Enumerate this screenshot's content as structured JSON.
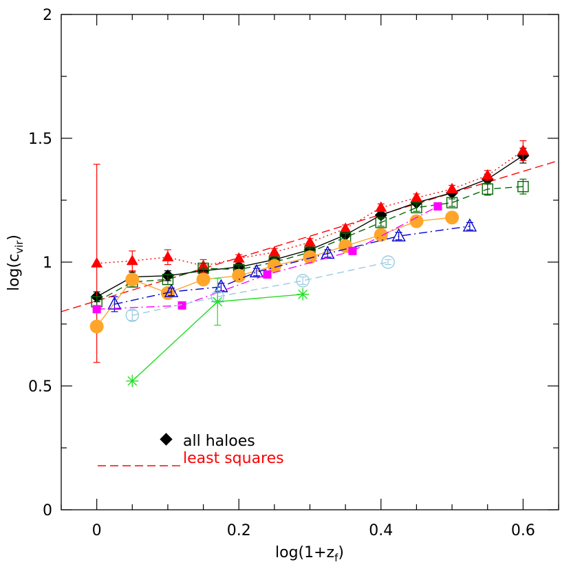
{
  "chart_data": {
    "type": "scatter",
    "xlabel": {
      "base": "log(1+z",
      "sub": "f",
      "close": ")"
    },
    "ylabel": {
      "base": "log(c",
      "sub": "vir",
      "close": ")"
    },
    "xlim": [
      -0.05,
      0.65
    ],
    "ylim": [
      0,
      2
    ],
    "xticks": [
      {
        "v": 0,
        "label": "0"
      },
      {
        "v": 0.2,
        "label": "0.2"
      },
      {
        "v": 0.4,
        "label": "0.4"
      },
      {
        "v": 0.6,
        "label": "0.6"
      }
    ],
    "yticks": [
      {
        "v": 0,
        "label": "0"
      },
      {
        "v": 0.5,
        "label": "0.5"
      },
      {
        "v": 1,
        "label": "1"
      },
      {
        "v": 1.5,
        "label": "1.5"
      },
      {
        "v": 2,
        "label": "2"
      }
    ],
    "x_minor_step": 0.05,
    "y_minor_step": 0.25,
    "series": [
      {
        "name": "all haloes",
        "marker": "diamond-filled",
        "color": "#000000",
        "line": "solid",
        "points": [
          [
            0,
            0.86,
            0.02
          ],
          [
            0.05,
            0.94,
            0.02
          ],
          [
            0.1,
            0.945,
            0.02
          ],
          [
            0.15,
            0.965,
            0.015
          ],
          [
            0.2,
            0.98,
            0.015
          ],
          [
            0.25,
            1.01,
            0.01
          ],
          [
            0.3,
            1.05,
            0.01
          ],
          [
            0.35,
            1.11,
            0.01
          ],
          [
            0.4,
            1.19,
            0.01
          ],
          [
            0.45,
            1.24,
            0.01
          ],
          [
            0.5,
            1.28,
            0.01
          ],
          [
            0.55,
            1.335,
            0.02
          ],
          [
            0.6,
            1.43,
            0.03
          ]
        ]
      },
      {
        "name": "",
        "marker": "triangle-filled",
        "color": "#ff0000",
        "line": "dotted",
        "points": [
          [
            0,
            0.995,
            0.4
          ],
          [
            0.05,
            1.005,
            0.04
          ],
          [
            0.1,
            1.02,
            0.03
          ],
          [
            0.15,
            0.985,
            0.025
          ],
          [
            0.2,
            1.015,
            0.015
          ],
          [
            0.25,
            1.04,
            0.015
          ],
          [
            0.3,
            1.08,
            0.015
          ],
          [
            0.35,
            1.135,
            0.015
          ],
          [
            0.4,
            1.22,
            0.015
          ],
          [
            0.45,
            1.26,
            0.015
          ],
          [
            0.5,
            1.295,
            0.015
          ],
          [
            0.55,
            1.35,
            0.02
          ],
          [
            0.6,
            1.45,
            0.04
          ]
        ]
      },
      {
        "name": "",
        "marker": "square-open",
        "color": "#006400",
        "line": "dashed",
        "points": [
          [
            0,
            0.84,
            0.02
          ],
          [
            0.05,
            0.92,
            0.02
          ],
          [
            0.1,
            0.93,
            0.02
          ],
          [
            0.15,
            0.975,
            0.02
          ],
          [
            0.2,
            0.97,
            0.015
          ],
          [
            0.25,
            1.0,
            0.015
          ],
          [
            0.3,
            1.04,
            0.015
          ],
          [
            0.35,
            1.1,
            0.015
          ],
          [
            0.4,
            1.16,
            0.015
          ],
          [
            0.45,
            1.22,
            0.015
          ],
          [
            0.5,
            1.24,
            0.015
          ],
          [
            0.55,
            1.295,
            0.025
          ],
          [
            0.6,
            1.305,
            0.03
          ]
        ]
      },
      {
        "name": "",
        "marker": "circle-filled",
        "color": "#ffa52a",
        "line": "solid",
        "points": [
          [
            0,
            0.74,
            0.0
          ],
          [
            0.05,
            0.93,
            0.0
          ],
          [
            0.1,
            0.875,
            0.0
          ],
          [
            0.15,
            0.93,
            0.0
          ],
          [
            0.2,
            0.945,
            0.0
          ],
          [
            0.25,
            0.985,
            0.0
          ],
          [
            0.3,
            1.02,
            0.0
          ],
          [
            0.35,
            1.065,
            0.0
          ],
          [
            0.4,
            1.11,
            0.0
          ],
          [
            0.45,
            1.165,
            0.0
          ],
          [
            0.5,
            1.18,
            0.0
          ]
        ]
      },
      {
        "name": "",
        "marker": "triangle-open",
        "color": "#0000cd",
        "line": "dashdot",
        "points": [
          [
            0.025,
            0.83,
            0.03
          ],
          [
            0.105,
            0.88,
            0.015
          ],
          [
            0.175,
            0.9,
            0.015
          ],
          [
            0.225,
            0.96,
            0.015
          ],
          [
            0.325,
            1.035,
            0.015
          ],
          [
            0.425,
            1.105,
            0.015
          ],
          [
            0.525,
            1.145,
            0.015
          ]
        ]
      },
      {
        "name": "",
        "marker": "square-filled",
        "color": "#ff00ff",
        "line": "dashdot",
        "points": [
          [
            0,
            0.81,
            0.0
          ],
          [
            0.12,
            0.825,
            0.0
          ],
          [
            0.24,
            0.95,
            0.0
          ],
          [
            0.36,
            1.045,
            0.0
          ],
          [
            0.48,
            1.225,
            0.0
          ]
        ]
      },
      {
        "name": "",
        "marker": "circle-open",
        "color": "#99cbe1",
        "line": "dashed",
        "points": [
          [
            0.05,
            0.785,
            0.02
          ],
          [
            0.17,
            0.86,
            0.015
          ],
          [
            0.29,
            0.925,
            0.015
          ],
          [
            0.41,
            1.0,
            0.01
          ]
        ]
      },
      {
        "name": "",
        "marker": "asterisk",
        "color": "#22dd22",
        "line": "solid",
        "points": [
          [
            0.05,
            0.52,
            0.0
          ],
          [
            0.17,
            0.84,
            0.095
          ],
          [
            0.29,
            0.87,
            0.0
          ]
        ]
      }
    ],
    "fit": {
      "name": "least squares",
      "color": "#ff0000",
      "x": [
        -0.05,
        0.65
      ],
      "y": [
        0.8,
        1.41
      ]
    },
    "legend": {
      "position": "bottom-left"
    },
    "grid": false
  }
}
